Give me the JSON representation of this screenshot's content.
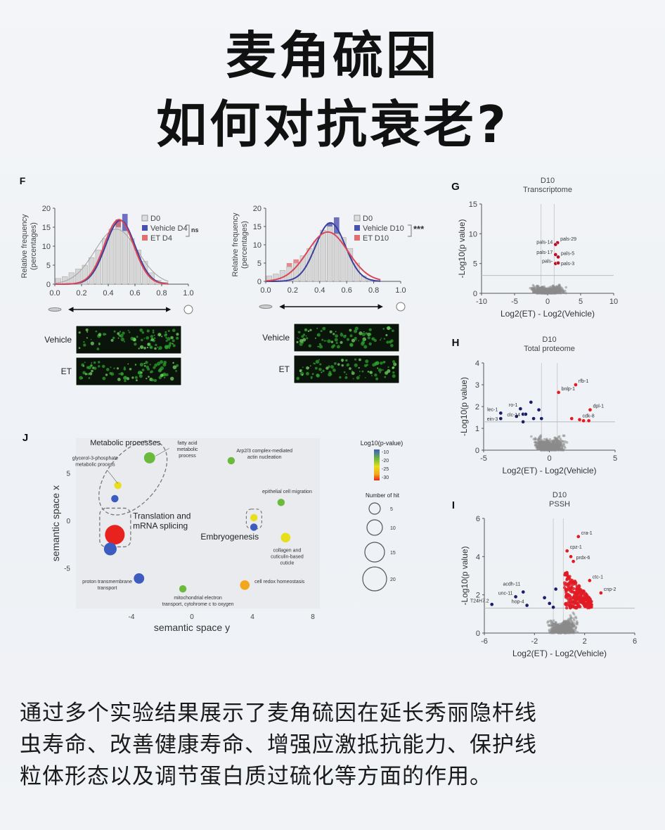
{
  "title": {
    "line1": "麦角硫因",
    "line2": "如何对抗衰老?"
  },
  "caption": {
    "lines": [
      "通过多个实验结果展示了麦角硫因在延长秀丽隐杆线",
      "虫寿命、改善健康寿命、增强应激抵抗能力、保护线",
      "粒体形态以及调节蛋白质过硫化等方面的作用。"
    ]
  },
  "panel_labels": {
    "F": "F",
    "G": "G",
    "H": "H",
    "I": "I",
    "J": "J"
  },
  "colors": {
    "d0": "#c8c8c8",
    "vehicle": "#4b4fb0",
    "et": "#e07070",
    "sig_up": "#e01b24",
    "sig_down": "#1a1f6b",
    "cloud": "#8a8a8a"
  },
  "chart_data": [
    {
      "type": "bar",
      "panel": "F-left",
      "ylabel": "Relative frequency (percentages)",
      "xlim": [
        0.0,
        1.0
      ],
      "ylim": [
        0,
        20
      ],
      "xticks": [
        "0.0",
        "0.2",
        "0.4",
        "0.6",
        "0.8",
        "1.0"
      ],
      "yticks": [
        "0",
        "5",
        "10",
        "15",
        "20"
      ],
      "bin_centers": [
        0.025,
        0.075,
        0.125,
        0.175,
        0.225,
        0.275,
        0.325,
        0.375,
        0.425,
        0.475,
        0.525,
        0.575,
        0.625,
        0.675,
        0.725,
        0.775,
        0.825
      ],
      "series": [
        {
          "name": "D0",
          "values": [
            1.5,
            2,
            3,
            4,
            5,
            7,
            9,
            12,
            14.5,
            15,
            14,
            12,
            9,
            6,
            3,
            1,
            0.5
          ]
        },
        {
          "name": "Vehicle D4",
          "values": [
            0,
            0,
            0,
            3,
            0,
            0,
            0,
            0,
            0,
            17,
            18.5,
            11,
            0,
            0,
            0,
            0,
            0
          ]
        },
        {
          "name": "ET D4",
          "values": [
            0,
            0,
            0,
            0,
            0,
            0,
            0,
            0,
            0,
            17,
            0,
            0,
            0,
            0,
            0,
            0,
            0
          ]
        }
      ],
      "fits": [
        {
          "name": "D0",
          "mean": 0.46,
          "sd": 0.16,
          "peak": 14.5
        },
        {
          "name": "Vehicle D4",
          "mean": 0.49,
          "sd": 0.11,
          "peak": 16.8
        },
        {
          "name": "ET D4",
          "mean": 0.48,
          "sd": 0.11,
          "peak": 17
        }
      ],
      "significance": "ns",
      "image_labels": [
        "Vehicle",
        "ET"
      ]
    },
    {
      "type": "bar",
      "panel": "F-right",
      "ylabel": "Relative frequency (percentages)",
      "xlim": [
        0.0,
        1.0
      ],
      "ylim": [
        0,
        20
      ],
      "xticks": [
        "0.0",
        "0.2",
        "0.4",
        "0.6",
        "0.8",
        "1.0"
      ],
      "yticks": [
        "0",
        "5",
        "10",
        "15",
        "20"
      ],
      "bin_centers": [
        0.025,
        0.075,
        0.125,
        0.175,
        0.225,
        0.275,
        0.325,
        0.375,
        0.425,
        0.475,
        0.525,
        0.575,
        0.625,
        0.675,
        0.725,
        0.775
      ],
      "series": [
        {
          "name": "D0",
          "values": [
            1.5,
            2,
            3,
            4,
            5,
            7,
            9,
            11,
            14,
            15,
            13,
            12,
            9,
            5,
            1.5,
            0.5
          ]
        },
        {
          "name": "Vehicle D10",
          "values": [
            0,
            0,
            0,
            0,
            0,
            0,
            0,
            0,
            0,
            16,
            17.5,
            11,
            0,
            0,
            0,
            0
          ]
        },
        {
          "name": "ET D10",
          "values": [
            0,
            2,
            3,
            5,
            6,
            0,
            0,
            0,
            14,
            0,
            0,
            0,
            0,
            0,
            0,
            0
          ]
        }
      ],
      "fits": [
        {
          "name": "Vehicle D10",
          "mean": 0.48,
          "sd": 0.11,
          "peak": 16
        },
        {
          "name": "ET D10",
          "mean": 0.46,
          "sd": 0.15,
          "peak": 13.5
        }
      ],
      "significance": "***",
      "image_labels": [
        "Vehicle",
        "ET"
      ]
    },
    {
      "type": "scatter",
      "panel": "G",
      "title": "D10",
      "subtitle": "Transcriptome",
      "xlabel": "Log2(ET) - Log2(Vehicle)",
      "ylabel": "-Log10(p value)",
      "xlim": [
        -10,
        10
      ],
      "ylim": [
        0,
        15
      ],
      "xticks": [
        "-10",
        "-5",
        "0",
        "5",
        "10"
      ],
      "yticks": [
        "0",
        "5",
        "10",
        "15"
      ],
      "thresholds": {
        "x": [
          -1,
          1
        ],
        "y": 3
      },
      "highlighted": [
        {
          "label": "pals-29",
          "x": 1.5,
          "y": 8.5
        },
        {
          "label": "pals-14",
          "x": 1.2,
          "y": 8.2
        },
        {
          "label": "pals-17",
          "x": 1.2,
          "y": 6.5
        },
        {
          "label": "pals-5",
          "x": 1.6,
          "y": 6.1
        },
        {
          "label": "pals-",
          "x": 1.2,
          "y": 5.0
        },
        {
          "label": "pals-3",
          "x": 1.6,
          "y": 5.1
        }
      ]
    },
    {
      "type": "scatter",
      "panel": "H",
      "title": "D10",
      "subtitle": "Total proteome",
      "xlabel": "Log2(ET) - Log2(Vehicle)",
      "ylabel": "-Log10(p value)",
      "xlim": [
        -5,
        5
      ],
      "ylim": [
        0,
        4
      ],
      "xticks": [
        "-5",
        "0",
        "5"
      ],
      "yticks": [
        "0",
        "1",
        "2",
        "3",
        "4"
      ],
      "thresholds": {
        "x": [
          -0.6,
          0.6
        ],
        "y": 1.3
      },
      "highlighted_up": [
        {
          "label": "rfb-1",
          "x": 2.0,
          "y": 3.0
        },
        {
          "label": "bnlp-1",
          "x": 0.7,
          "y": 2.65
        },
        {
          "label": "dpl-1",
          "x": 3.1,
          "y": 1.85
        },
        {
          "label": "cdk-8",
          "x": 2.3,
          "y": 1.4
        },
        {
          "label": "",
          "x": 1.7,
          "y": 1.45
        },
        {
          "label": "",
          "x": 2.6,
          "y": 1.35
        },
        {
          "label": "",
          "x": 3.0,
          "y": 1.35
        }
      ],
      "highlighted_down": [
        {
          "label": "lec-1",
          "x": -3.7,
          "y": 1.7
        },
        {
          "label": "ein-3",
          "x": -3.7,
          "y": 1.45
        },
        {
          "label": "ro-1",
          "x": -2.2,
          "y": 1.9
        },
        {
          "label": "clc-14",
          "x": -2.0,
          "y": 1.65
        },
        {
          "label": "",
          "x": -1.4,
          "y": 2.2
        },
        {
          "label": "",
          "x": -2.5,
          "y": 1.55
        },
        {
          "label": "",
          "x": -2.0,
          "y": 1.3
        },
        {
          "label": "",
          "x": -1.8,
          "y": 1.65
        },
        {
          "label": "",
          "x": -1.2,
          "y": 1.45
        },
        {
          "label": "",
          "x": -0.8,
          "y": 1.85
        },
        {
          "label": "",
          "x": -0.6,
          "y": 1.45
        }
      ]
    },
    {
      "type": "scatter",
      "panel": "I",
      "title": "D10",
      "subtitle": "PSSH",
      "xlabel": "Log2(ET) - Log2(Vehicle)",
      "ylabel": "-Log10(p value)",
      "xlim": [
        -6,
        6
      ],
      "ylim": [
        0,
        6
      ],
      "xticks": [
        "-6",
        "-2",
        "2",
        "6"
      ],
      "yticks": [
        "0",
        "2",
        "4",
        "6"
      ],
      "thresholds": {
        "x": [
          -0.5,
          0.3
        ],
        "y": 1.3
      },
      "highlighted_up": [
        {
          "label": "cra-1",
          "x": 1.5,
          "y": 5.05
        },
        {
          "label": "cpz-1",
          "x": 0.6,
          "y": 4.3
        },
        {
          "label": "",
          "x": 0.9,
          "y": 4.0
        },
        {
          "label": "prdx-6",
          "x": 1.1,
          "y": 3.75
        },
        {
          "label": "ctc-1",
          "x": 2.4,
          "y": 2.75
        },
        {
          "label": "cnp-2",
          "x": 3.3,
          "y": 2.1
        }
      ],
      "highlighted_down": [
        {
          "label": "T24H7.2",
          "x": -5.4,
          "y": 1.5
        },
        {
          "label": "unc-11",
          "x": -3.5,
          "y": 1.9
        },
        {
          "label": "acdh-11",
          "x": -2.9,
          "y": 2.15
        },
        {
          "label": "hop-4",
          "x": -2.6,
          "y": 1.45
        },
        {
          "label": "",
          "x": -1.2,
          "y": 1.85
        },
        {
          "label": "",
          "x": -0.3,
          "y": 2.3
        },
        {
          "label": "",
          "x": -0.8,
          "y": 1.55
        },
        {
          "label": "",
          "x": -0.5,
          "y": 1.35
        }
      ]
    },
    {
      "type": "scatter",
      "panel": "J",
      "xlabel": "semantic space y",
      "ylabel": "semantic space x",
      "xlim": [
        -7.5,
        8.5
      ],
      "ylim": [
        -9,
        8
      ],
      "xticks": [
        "-4",
        "0",
        "4",
        "8"
      ],
      "yticks": [
        "-5",
        "0",
        "5"
      ],
      "colorbar": {
        "title": "Log10(p-value)",
        "ticks": [
          "-10",
          "-20",
          "-25",
          "-30"
        ]
      },
      "size_legend": {
        "title": "Number of hit",
        "values": [
          5,
          10,
          15,
          20
        ]
      },
      "groups": [
        "Metabolic processes",
        "Translation and mRNA splicing",
        "Embryogenesis"
      ],
      "points": [
        {
          "label": "fatty acid metabolic process",
          "x": -2.8,
          "y": 6.6,
          "log10p": -18,
          "hits": 9
        },
        {
          "label": "glycerol-3-phosphate metabolic process",
          "x": -4.9,
          "y": 3.7,
          "log10p": -23,
          "hits": 4
        },
        {
          "label": "",
          "x": -5.1,
          "y": 2.3,
          "log10p": -10,
          "hits": 4
        },
        {
          "label": "",
          "x": -5.1,
          "y": -1.5,
          "log10p": -30,
          "hits": 20
        },
        {
          "label": "",
          "x": -5.4,
          "y": -3.0,
          "log10p": -10,
          "hits": 11
        },
        {
          "label": "proton transmembrane transport",
          "x": -3.5,
          "y": -6.1,
          "log10p": -10,
          "hits": 8
        },
        {
          "label": "mitochondrial electron transport, cytohrome c to oxygen",
          "x": -0.6,
          "y": -7.2,
          "log10p": -18,
          "hits": 4
        },
        {
          "label": "Arp2/3 complex-mediated actin nucleation",
          "x": 2.6,
          "y": 6.3,
          "log10p": -18,
          "hits": 4
        },
        {
          "label": "epithelial cell migration",
          "x": 5.9,
          "y": 1.9,
          "log10p": -18,
          "hits": 4
        },
        {
          "label": "",
          "x": 4.1,
          "y": 0.3,
          "log10p": -23,
          "hits": 4
        },
        {
          "label": "",
          "x": 4.1,
          "y": -0.7,
          "log10p": -10,
          "hits": 4
        },
        {
          "label": "collagen and cuticulin-based cuticle",
          "x": 6.2,
          "y": -1.8,
          "log10p": -23,
          "hits": 7
        },
        {
          "label": "cell redox homeostasis",
          "x": 3.5,
          "y": -6.8,
          "log10p": -26,
          "hits": 7
        }
      ]
    }
  ]
}
